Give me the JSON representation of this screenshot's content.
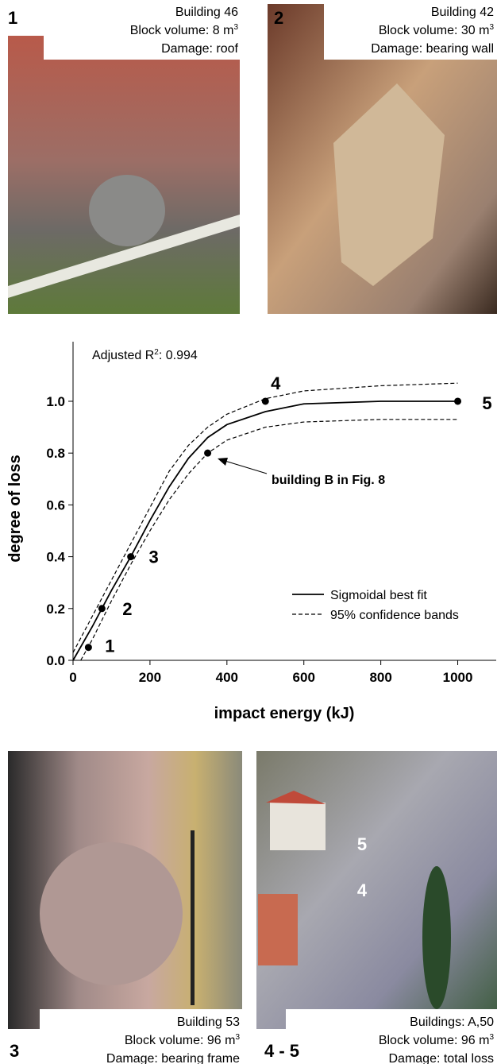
{
  "chart_data": {
    "type": "line",
    "annotation_r2": {
      "text": "Adjusted R",
      "sup": "2",
      "value": ": 0.994"
    },
    "annotation_arrow": "building B in Fig. 8",
    "x_label": "impact energy (kJ)",
    "y_label": "degree of loss",
    "xlim": [
      0,
      1100
    ],
    "ylim": [
      0,
      1.23
    ],
    "xticks": [
      0,
      200,
      400,
      600,
      800,
      1000
    ],
    "yticks": [
      {
        "value": 0,
        "label": "0.0"
      },
      0.2,
      0.4,
      0.6,
      0.8,
      {
        "value": 1,
        "label": "1.0"
      }
    ],
    "legend": "bottom-right",
    "series": [
      {
        "name": "Sigmoidal best fit",
        "color": "#000000",
        "style": "solid",
        "x": [
          0,
          50,
          100,
          150,
          200,
          250,
          300,
          350,
          400,
          500,
          600,
          800,
          1000
        ],
        "values": [
          0.0,
          0.13,
          0.27,
          0.4,
          0.54,
          0.67,
          0.78,
          0.86,
          0.91,
          0.96,
          0.99,
          1.0,
          1.0
        ]
      },
      {
        "name": "95% confidence bands",
        "color": "#000000",
        "style": "dashed",
        "x": [
          0,
          50,
          100,
          150,
          200,
          250,
          300,
          350,
          400,
          500,
          600,
          800,
          1000
        ],
        "values": [
          0.03,
          0.17,
          0.31,
          0.45,
          0.59,
          0.73,
          0.83,
          0.9,
          0.95,
          1.01,
          1.04,
          1.06,
          1.07
        ]
      },
      {
        "color": "#000000",
        "style": "dashed",
        "x": [
          20,
          50,
          100,
          150,
          200,
          250,
          300,
          350,
          400,
          500,
          600,
          800,
          1000
        ],
        "values": [
          0.0,
          0.08,
          0.23,
          0.37,
          0.5,
          0.62,
          0.72,
          0.8,
          0.85,
          0.9,
          0.92,
          0.93,
          0.93
        ]
      },
      {
        "type": "scatter",
        "color": "#000000",
        "x": [
          40,
          75,
          150,
          350,
          500,
          1000
        ],
        "values": [
          0.05,
          0.2,
          0.4,
          0.8,
          1.0,
          1.0
        ],
        "point_labels": [
          "1",
          "2",
          "3",
          null,
          "4",
          "5"
        ]
      }
    ]
  },
  "photos": [
    {
      "label": "1",
      "building": "Building  46",
      "volume": "Block volume: 8 m",
      "volume_sup": "3",
      "damage": "Damage:  roof"
    },
    {
      "label": "2",
      "building": "Building  42",
      "volume": "Block volume: 30 m",
      "volume_sup": "3",
      "damage": "Damage:  bearing wall"
    },
    {
      "label": "3",
      "building": "Building  53",
      "volume": "Block volume: 96 m",
      "volume_sup": "3",
      "damage": "Damage:  bearing frame"
    },
    {
      "label": "4 - 5",
      "building": "Buildings: A,50",
      "volume": "Block volume: 96 m",
      "volume_sup": "3",
      "damage": "Damage:  total loss",
      "marks": [
        "5",
        "4"
      ]
    }
  ]
}
